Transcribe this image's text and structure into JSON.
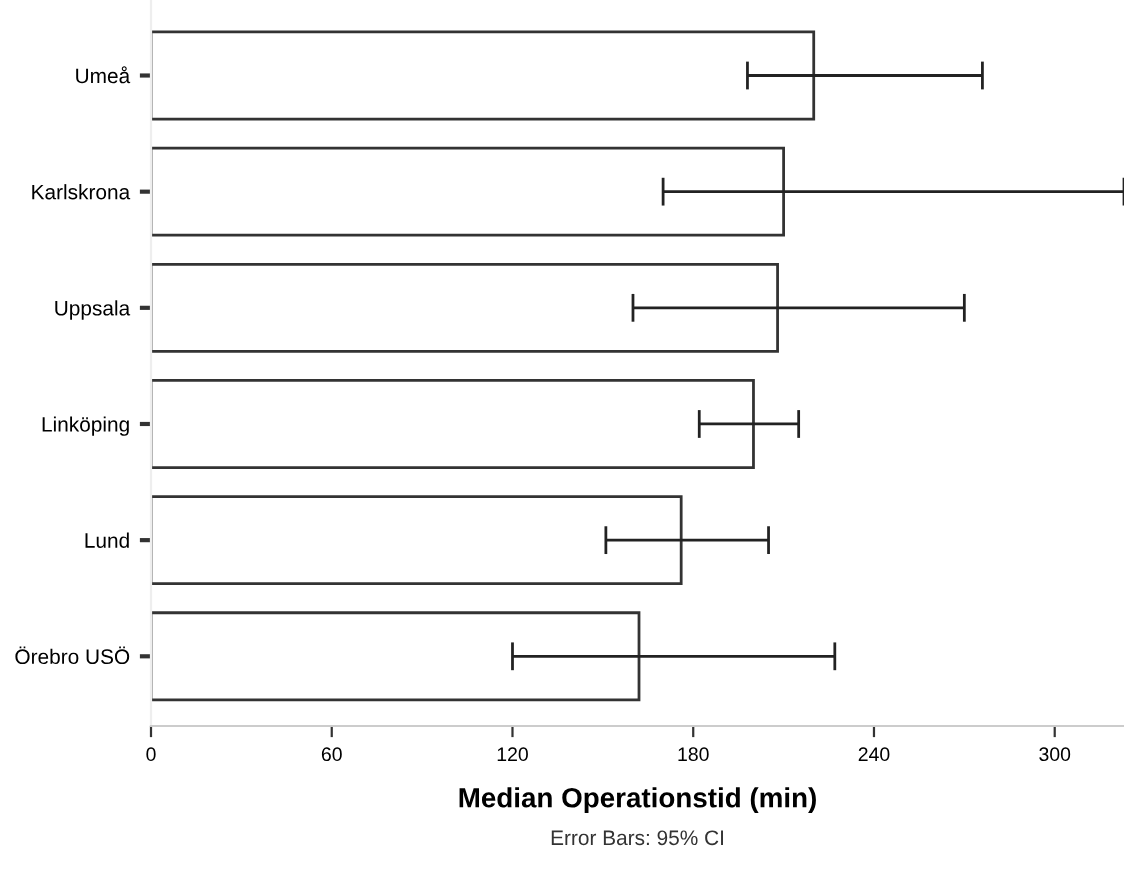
{
  "chart_data": {
    "type": "bar",
    "orientation": "horizontal",
    "categories": [
      "Umeå",
      "Karlskrona",
      "Uppsala",
      "Linköping",
      "Lund",
      "Örebro USÖ"
    ],
    "values": [
      220,
      210,
      208,
      200,
      176,
      162
    ],
    "errors": [
      [
        198,
        276
      ],
      [
        170,
        323
      ],
      [
        160,
        270
      ],
      [
        182,
        215
      ],
      [
        151,
        205
      ],
      [
        120,
        227
      ]
    ],
    "color": "#ffffff",
    "xlabel": "Median Operationstid (min)",
    "xlim": [
      0,
      323
    ],
    "xticks": [
      0,
      60,
      120,
      180,
      240,
      300
    ],
    "grid": false,
    "annotations": [
      "Error Bars: 95% CI"
    ]
  }
}
